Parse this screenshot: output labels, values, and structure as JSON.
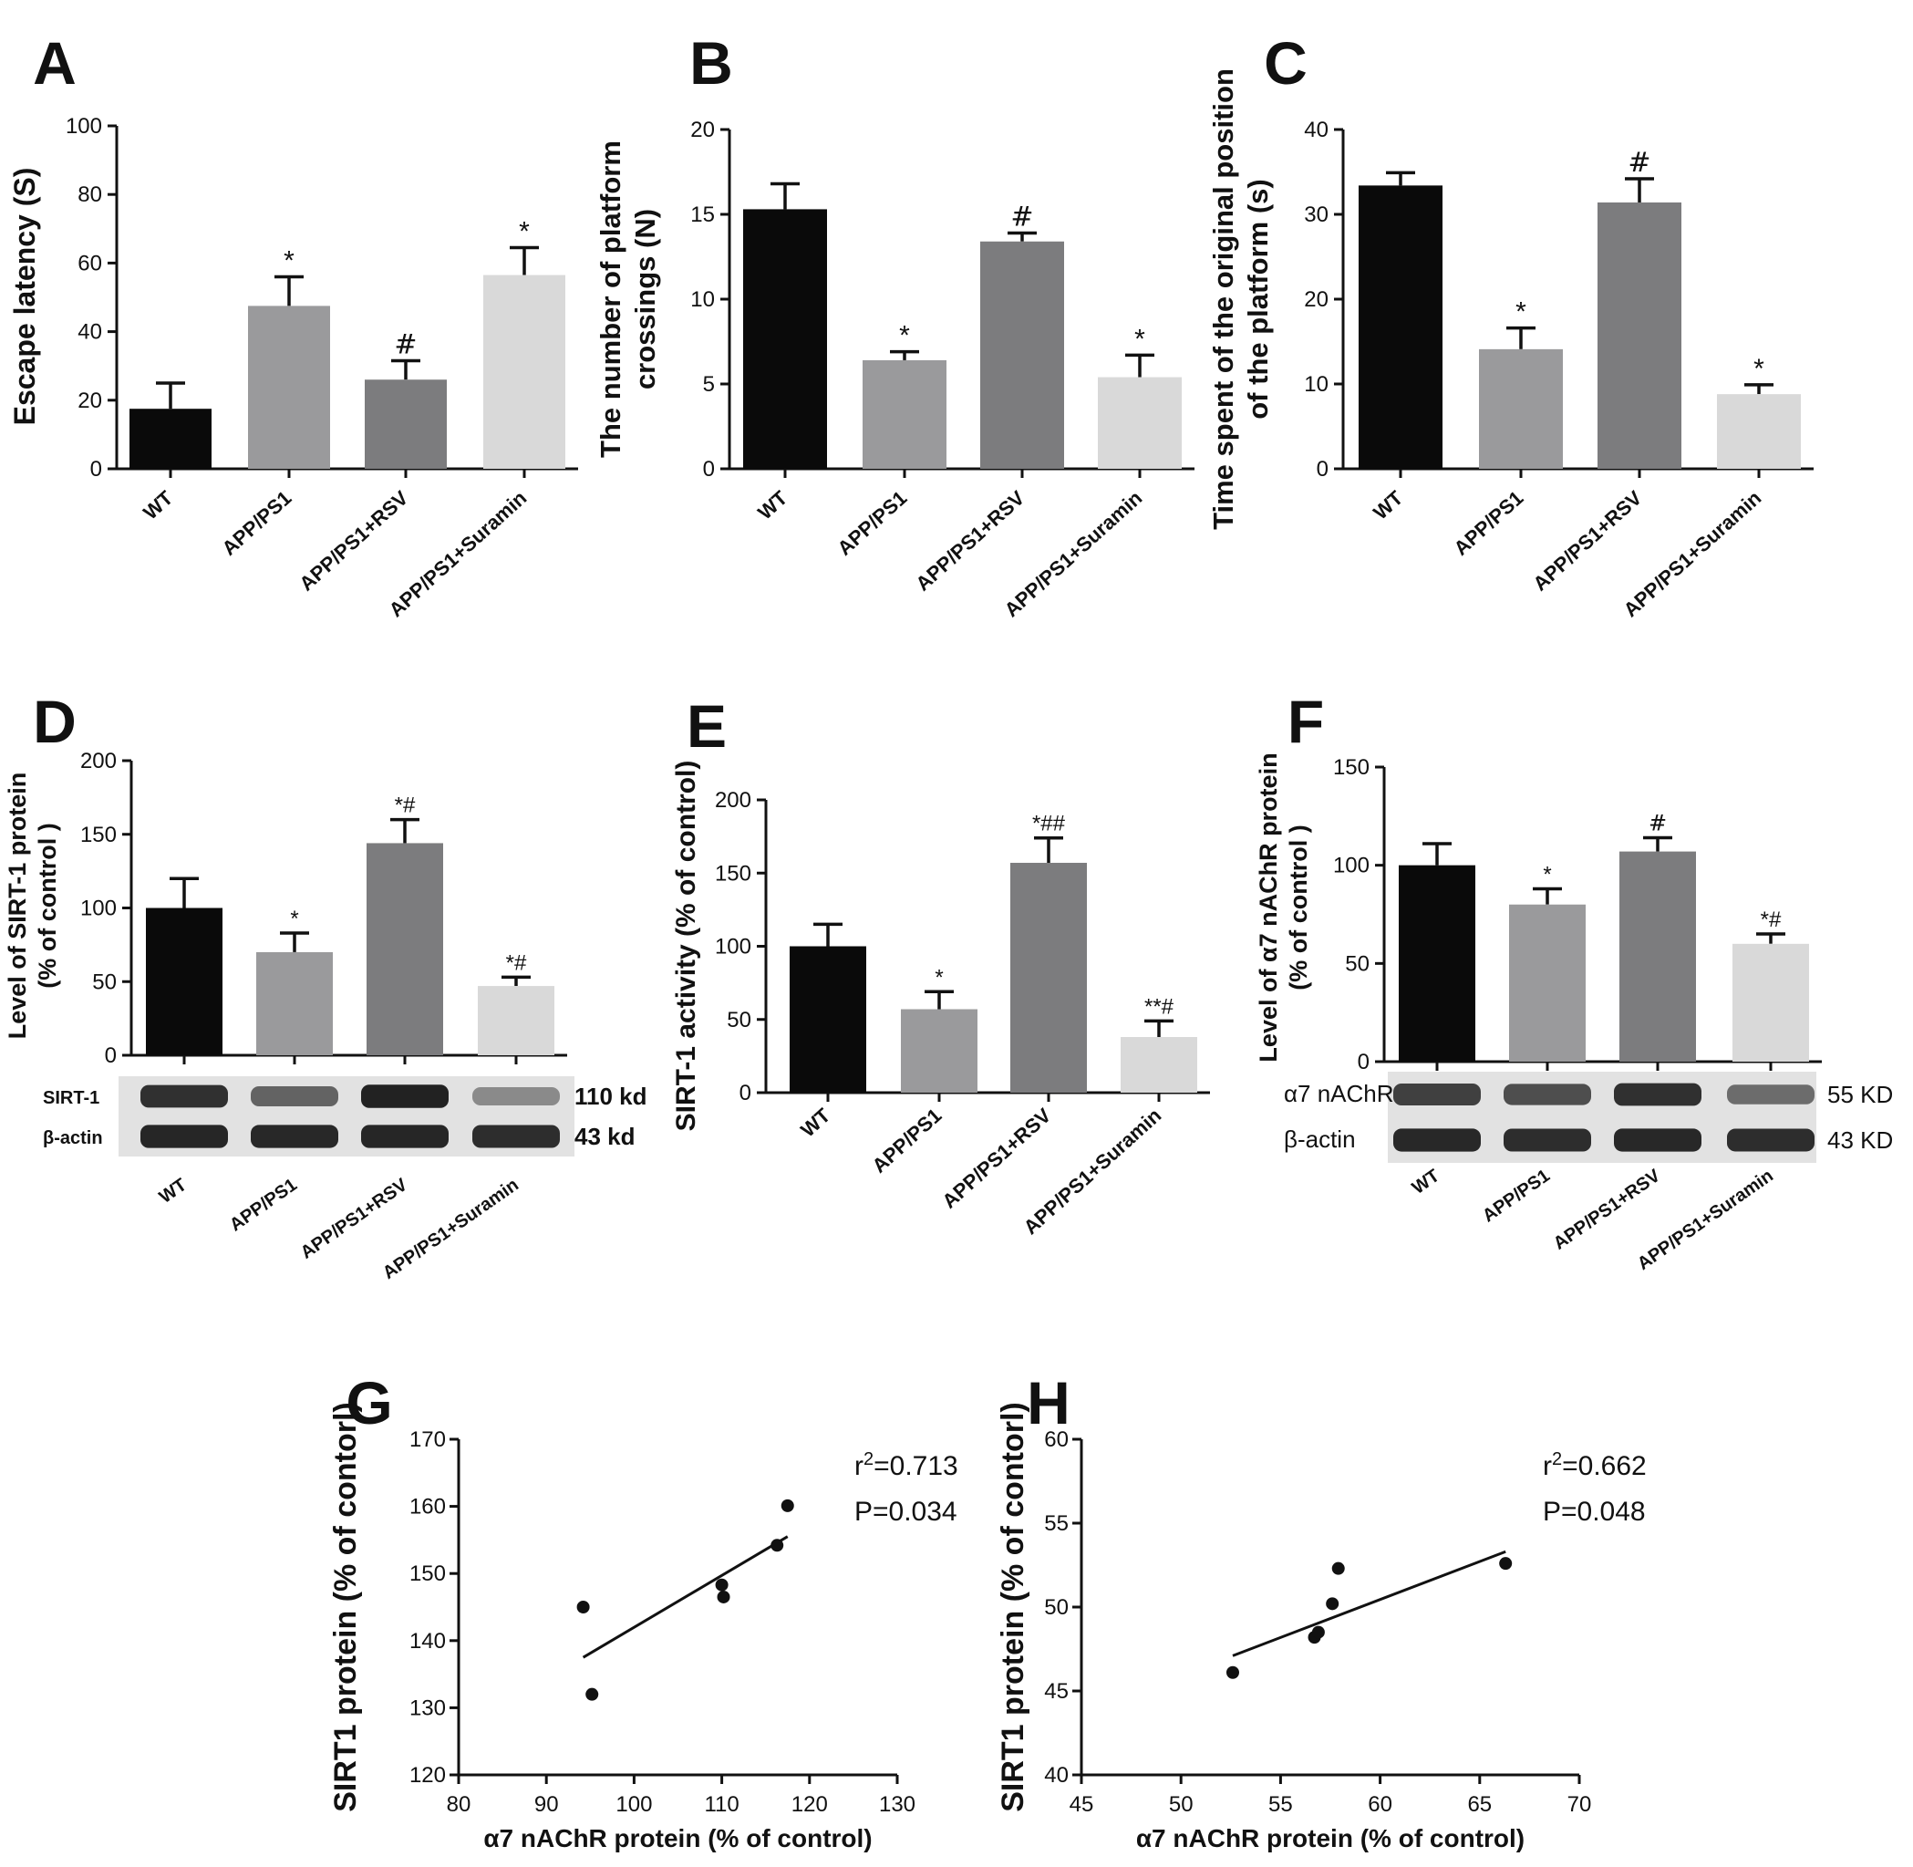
{
  "panel_letters": [
    "A",
    "B",
    "C",
    "D",
    "E",
    "F",
    "G",
    "H"
  ],
  "colors": {
    "WT": "#0a0a0a",
    "APP/PS1": "#9a9a9c",
    "APP/PS1+RSV": "#7c7c7e",
    "APP/PS1+Suramin": "#d9d9d9",
    "blot_bg": "#e2e2e2",
    "blot_band": "#1a1a1a"
  },
  "chart_data": [
    {
      "id": "A",
      "type": "bar",
      "categories": [
        "WT",
        "APP/PS1",
        "APP/PS1+RSV",
        "APP/PS1+Suramin"
      ],
      "values": [
        17.5,
        47.5,
        26,
        56.5
      ],
      "errors": [
        7.5,
        8.5,
        5.5,
        8
      ],
      "annotations": [
        "",
        "*",
        "#",
        "*"
      ],
      "ylabel": "Escape latency (S)",
      "ylim": [
        0,
        100
      ],
      "yticks": [
        0,
        20,
        40,
        60,
        80,
        100
      ]
    },
    {
      "id": "B",
      "type": "bar",
      "categories": [
        "WT",
        "APP/PS1",
        "APP/PS1+RSV",
        "APP/PS1+Suramin"
      ],
      "values": [
        15.3,
        6.4,
        13.4,
        5.4
      ],
      "errors": [
        1.5,
        0.5,
        0.5,
        1.3
      ],
      "annotations": [
        "",
        "*",
        "#",
        "*"
      ],
      "ylabel_lines": [
        "The number of platform",
        "crossings (N)"
      ],
      "ylim": [
        0,
        20
      ],
      "yticks": [
        0,
        5,
        10,
        15,
        20
      ]
    },
    {
      "id": "C",
      "type": "bar",
      "categories": [
        "WT",
        "APP/PS1",
        "APP/PS1+RSV",
        "APP/PS1+Suramin"
      ],
      "values": [
        33.4,
        14.1,
        31.4,
        8.8
      ],
      "errors": [
        1.5,
        2.5,
        2.8,
        1.1
      ],
      "annotations": [
        "",
        "*",
        "#",
        "*"
      ],
      "ylabel_lines": [
        "Time spent of the original position",
        "of the platform (s)"
      ],
      "ylim": [
        0,
        40
      ],
      "yticks": [
        0,
        10,
        20,
        30,
        40
      ]
    },
    {
      "id": "D",
      "type": "bar",
      "categories": [
        "WT",
        "APP/PS1",
        "APP/PS1+RSV",
        "APP/PS1+Suramin"
      ],
      "values": [
        100,
        70,
        144,
        47
      ],
      "errors": [
        20,
        13,
        16,
        6
      ],
      "annotations": [
        "",
        "*",
        "*#",
        "*#"
      ],
      "ylabel_lines": [
        "Level of SIRT-1 protein",
        "(% of control )"
      ],
      "ylim": [
        0,
        200
      ],
      "yticks": [
        0,
        50,
        100,
        150,
        200
      ],
      "blot": {
        "rows": [
          {
            "label": "SIRT-1",
            "size": "110 kd",
            "intensity": [
              0.85,
              0.5,
              0.95,
              0.25
            ]
          },
          {
            "label": "β-actin",
            "size": "43 kd",
            "intensity": [
              0.92,
              0.9,
              0.92,
              0.88
            ]
          }
        ]
      }
    },
    {
      "id": "E",
      "type": "bar",
      "categories": [
        "WT",
        "APP/PS1",
        "APP/PS1+RSV",
        "APP/PS1+Suramin"
      ],
      "values": [
        100,
        57,
        157,
        38
      ],
      "errors": [
        15,
        12,
        17,
        11
      ],
      "annotations": [
        "",
        "*",
        "*##",
        "**#"
      ],
      "ylabel": "SIRT-1 activity (% of control)",
      "ylim": [
        0,
        200
      ],
      "yticks": [
        0,
        50,
        100,
        150,
        200
      ]
    },
    {
      "id": "F",
      "type": "bar",
      "categories": [
        "WT",
        "APP/PS1",
        "APP/PS1+RSV",
        "APP/PS1+Suramin"
      ],
      "values": [
        100,
        80,
        107,
        60
      ],
      "errors": [
        11,
        8,
        7,
        5
      ],
      "annotations": [
        "",
        "*",
        "#",
        "*#"
      ],
      "ylabel_lines": [
        "Level of α7 nAChR  protein",
        "(% of control )"
      ],
      "ylim": [
        0,
        150
      ],
      "yticks": [
        0,
        50,
        100,
        150
      ],
      "blot": {
        "rows": [
          {
            "label": "α7 nAChR",
            "size": "55 KD",
            "intensity": [
              0.75,
              0.65,
              0.85,
              0.45
            ]
          },
          {
            "label": "β-actin",
            "size": "43 KD",
            "intensity": [
              0.9,
              0.88,
              0.9,
              0.86
            ]
          }
        ]
      }
    },
    {
      "id": "G",
      "type": "scatter",
      "x": [
        94.2,
        95.2,
        110,
        110.2,
        116.3,
        117.5
      ],
      "y": [
        145,
        132,
        148.3,
        146.5,
        154.2,
        160.1
      ],
      "fit": {
        "x": [
          94.2,
          117.5
        ],
        "y": [
          137.5,
          155.5
        ]
      },
      "stats": {
        "r2_prefix": "r",
        "r2_exp": "2",
        "r2_value": "=0.713",
        "p": "P=0.034"
      },
      "xlabel": "α7 nAChR protein (% of control)",
      "ylabel": "SIRT1 protein (% of contorl)",
      "xlim": [
        80,
        130
      ],
      "ylim": [
        120,
        170
      ],
      "xticks": [
        80,
        90,
        100,
        110,
        120,
        130
      ],
      "yticks": [
        120,
        130,
        140,
        150,
        160,
        170
      ]
    },
    {
      "id": "H",
      "type": "scatter",
      "x": [
        52.6,
        56.7,
        56.9,
        57.6,
        57.9,
        66.3
      ],
      "y": [
        46.1,
        48.2,
        48.5,
        50.2,
        52.3,
        52.6
      ],
      "fit": {
        "x": [
          52.6,
          66.3
        ],
        "y": [
          47.1,
          53.3
        ]
      },
      "stats": {
        "r2_prefix": "r",
        "r2_exp": "2",
        "r2_value": "=0.662",
        "p": "P=0.048"
      },
      "xlabel": "α7 nAChR protein (% of control)",
      "ylabel": "SIRT1 protein (% of contorl)",
      "xlim": [
        45,
        70
      ],
      "ylim": [
        40,
        60
      ],
      "xticks": [
        45,
        50,
        55,
        60,
        65,
        70
      ],
      "yticks": [
        40,
        45,
        50,
        55,
        60
      ]
    }
  ]
}
